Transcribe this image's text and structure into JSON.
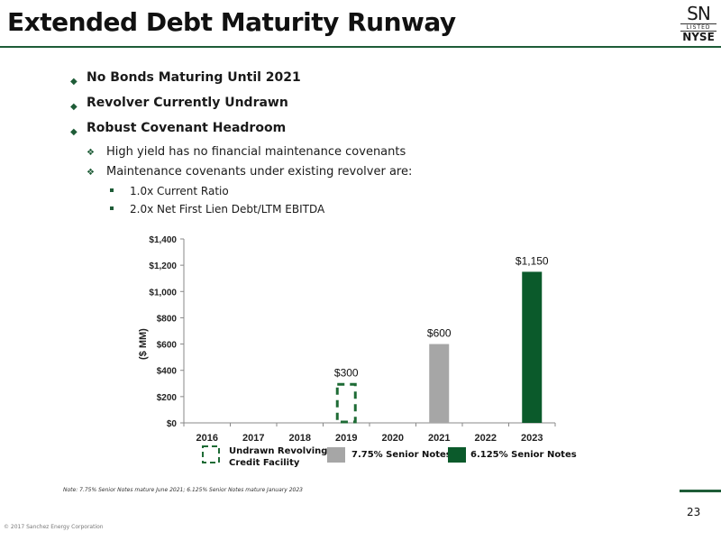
{
  "title": "Extended Debt Maturity Runway",
  "logo": {
    "ticker": "SN",
    "listed": "LISTED",
    "exchange": "NYSE"
  },
  "bullets": [
    {
      "level": 1,
      "text": "No Bonds Maturing Until 2021"
    },
    {
      "level": 1,
      "text": "Revolver Currently Undrawn"
    },
    {
      "level": 1,
      "text": "Robust Covenant Headroom"
    },
    {
      "level": 2,
      "text": "High yield has no financial maintenance covenants"
    },
    {
      "level": 2,
      "text": "Maintenance covenants under existing revolver are:"
    },
    {
      "level": 3,
      "text": "1.0x Current Ratio"
    },
    {
      "level": 3,
      "text": "2.0x Net First Lien Debt/LTM EBITDA"
    }
  ],
  "chart_data": {
    "type": "bar",
    "categories": [
      "2016",
      "2017",
      "2018",
      "2019",
      "2020",
      "2021",
      "2022",
      "2023"
    ],
    "series": [
      {
        "name": "Undrawn Revolving Credit Facility",
        "values": [
          0,
          0,
          0,
          300,
          0,
          0,
          0,
          0
        ],
        "color": "#1e6b35",
        "style": "dashed-outline"
      },
      {
        "name": "7.75% Senior Notes",
        "values": [
          0,
          0,
          0,
          0,
          0,
          600,
          0,
          0
        ],
        "color": "#a6a6a6",
        "style": "solid"
      },
      {
        "name": "6.125% Senior Notes",
        "values": [
          0,
          0,
          0,
          0,
          0,
          0,
          0,
          1150
        ],
        "color": "#0b5a2b",
        "style": "solid"
      }
    ],
    "data_labels": [
      {
        "category": "2019",
        "text": "$300"
      },
      {
        "category": "2021",
        "text": "$600"
      },
      {
        "category": "2023",
        "text": "$1,150"
      }
    ],
    "ylabel": "($ MM)",
    "ylim": [
      0,
      1400
    ],
    "yticks": [
      "$0",
      "$200",
      "$400",
      "$600",
      "$800",
      "$1,000",
      "$1,200",
      "$1,400"
    ],
    "legend_placement": "bottom",
    "grid": false
  },
  "legend": {
    "revolver_line1": "Undrawn Revolving",
    "revolver_line2": "Credit Facility",
    "notes_775": "7.75% Senior Notes",
    "notes_6125": "6.125% Senior Notes"
  },
  "note": "Note: 7.75% Senior Notes mature June 2021; 6.125% Senior Notes mature January 2023",
  "page_number": "23",
  "copyright": "© 2017 Sanchez Energy Corporation"
}
